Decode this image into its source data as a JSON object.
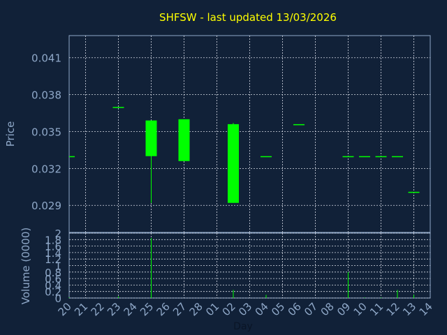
{
  "title": "SHFSW - last updated 13/03/2026",
  "colors": {
    "background": "#112138",
    "title": "#ffff00",
    "axis_text": "#8fa8c8",
    "frame": "#8fa8c8",
    "grid": "#d8dde6",
    "candle": "#00ff00"
  },
  "chart_data": [
    {
      "type": "candlestick",
      "ylabel": "Price",
      "ylim": [
        0.0268,
        0.0428
      ],
      "yticks": [
        "0.041",
        "0.038",
        "0.035",
        "0.032",
        "0.029"
      ],
      "ytick_values": [
        0.041,
        0.038,
        0.035,
        0.032,
        0.029
      ],
      "grid": true,
      "candles": [
        {
          "day": "20",
          "open": 0.033,
          "close": 0.033,
          "high": 0.033,
          "low": 0.033
        },
        {
          "day": "23",
          "open": 0.037,
          "close": 0.037,
          "high": 0.037,
          "low": 0.037
        },
        {
          "day": "25",
          "open": 0.033,
          "close": 0.0359,
          "high": 0.0359,
          "low": 0.0292
        },
        {
          "day": "27",
          "open": 0.0326,
          "close": 0.036,
          "high": 0.036,
          "low": 0.0326
        },
        {
          "day": "02",
          "open": 0.0292,
          "close": 0.0356,
          "high": 0.0357,
          "low": 0.0292
        },
        {
          "day": "04",
          "open": 0.033,
          "close": 0.033,
          "high": 0.033,
          "low": 0.033
        },
        {
          "day": "06",
          "open": 0.0356,
          "close": 0.0356,
          "high": 0.0356,
          "low": 0.0356
        },
        {
          "day": "09",
          "open": 0.033,
          "close": 0.033,
          "high": 0.033,
          "low": 0.033
        },
        {
          "day": "10",
          "open": 0.033,
          "close": 0.033,
          "high": 0.033,
          "low": 0.033
        },
        {
          "day": "11",
          "open": 0.033,
          "close": 0.033,
          "high": 0.033,
          "low": 0.033
        },
        {
          "day": "12",
          "open": 0.033,
          "close": 0.033,
          "high": 0.033,
          "low": 0.033
        },
        {
          "day": "13",
          "open": 0.0301,
          "close": 0.0301,
          "high": 0.0301,
          "low": 0.0301
        }
      ]
    },
    {
      "type": "bar",
      "ylabel": "Volume (0000)",
      "xlabel": "Day",
      "ylim": [
        0,
        2
      ],
      "yticks": [
        "2",
        "1.8",
        "1.6",
        "1.4",
        "1.2",
        "1",
        "0.8",
        "0.6",
        "0.4",
        "0.2",
        "0"
      ],
      "ytick_values": [
        2,
        1.8,
        1.6,
        1.4,
        1.2,
        1,
        0.8,
        0.6,
        0.4,
        0.2,
        0
      ],
      "categories": [
        "20",
        "21",
        "22",
        "23",
        "24",
        "25",
        "26",
        "27",
        "28",
        "01",
        "02",
        "03",
        "04",
        "05",
        "06",
        "07",
        "08",
        "09",
        "10",
        "11",
        "12",
        "13",
        "14"
      ],
      "volumes": [
        {
          "day": "20",
          "value": 0.02
        },
        {
          "day": "23",
          "value": 0.05
        },
        {
          "day": "25",
          "value": 1.85
        },
        {
          "day": "02",
          "value": 0.25
        },
        {
          "day": "04",
          "value": 0.1
        },
        {
          "day": "09",
          "value": 0.8
        },
        {
          "day": "10",
          "value": 0.02
        },
        {
          "day": "11",
          "value": 0.02
        },
        {
          "day": "12",
          "value": 0.25
        },
        {
          "day": "13",
          "value": 0.1
        }
      ]
    }
  ]
}
